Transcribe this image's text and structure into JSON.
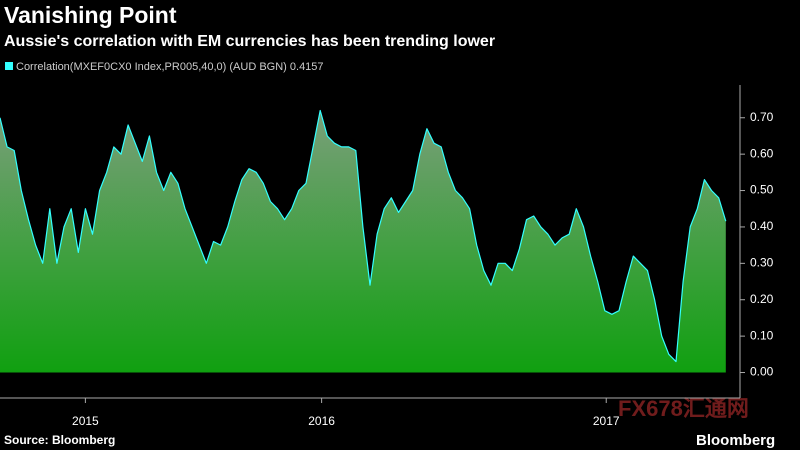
{
  "chart_data": {
    "type": "area",
    "title": "Vanishing Point",
    "subtitle": "Aussie's correlation with EM currencies has been trending lower",
    "source": "Source: Bloomberg",
    "brand": "Bloomberg",
    "watermark": "FX678汇通网",
    "x": [
      2014.7,
      2014.725,
      2014.75,
      2014.775,
      2014.8,
      2014.825,
      2014.85,
      2014.875,
      2014.9,
      2014.925,
      2014.95,
      2014.975,
      2015,
      2015.025,
      2015.05,
      2015.075,
      2015.1,
      2015.125,
      2015.15,
      2015.175,
      2015.2,
      2015.225,
      2015.25,
      2015.275,
      2015.3,
      2015.325,
      2015.35,
      2015.375,
      2015.4,
      2015.425,
      2015.45,
      2015.475,
      2015.5,
      2015.525,
      2015.55,
      2015.575,
      2015.6,
      2015.625,
      2015.65,
      2015.675,
      2015.7,
      2015.725,
      2015.75,
      2015.775,
      2015.8,
      2015.825,
      2015.85,
      2015.875,
      2015.9,
      2015.925,
      2015.95,
      2015.975,
      2016,
      2016.025,
      2016.05,
      2016.075,
      2016.1,
      2016.125,
      2016.15,
      2016.175,
      2016.2,
      2016.225,
      2016.25,
      2016.275,
      2016.3,
      2016.325,
      2016.35,
      2016.375,
      2016.4,
      2016.425,
      2016.45,
      2016.475,
      2016.5,
      2016.525,
      2016.55,
      2016.575,
      2016.6,
      2016.625,
      2016.65,
      2016.675,
      2016.7,
      2016.725,
      2016.75,
      2016.775,
      2016.8,
      2016.825,
      2016.85,
      2016.875,
      2016.9,
      2016.925,
      2016.95,
      2016.975,
      2017,
      2017.025,
      2017.05,
      2017.075,
      2017.1,
      2017.125,
      2017.15,
      2017.175,
      2017.2,
      2017.225,
      2017.25
    ],
    "series": [
      {
        "name": "Correlation(MXEF0CX0 Index,PR005,40,0) (AUD BGN)",
        "color": "#33ffff",
        "values": [
          0.7,
          0.62,
          0.61,
          0.5,
          0.42,
          0.35,
          0.3,
          0.45,
          0.3,
          0.4,
          0.45,
          0.33,
          0.45,
          0.38,
          0.5,
          0.55,
          0.62,
          0.6,
          0.68,
          0.63,
          0.58,
          0.65,
          0.55,
          0.5,
          0.55,
          0.52,
          0.45,
          0.4,
          0.35,
          0.3,
          0.36,
          0.35,
          0.4,
          0.47,
          0.53,
          0.56,
          0.55,
          0.52,
          0.47,
          0.45,
          0.42,
          0.45,
          0.5,
          0.52,
          0.62,
          0.72,
          0.65,
          0.63,
          0.62,
          0.62,
          0.61,
          0.4,
          0.24,
          0.38,
          0.45,
          0.48,
          0.44,
          0.47,
          0.5,
          0.6,
          0.67,
          0.63,
          0.62,
          0.55,
          0.5,
          0.48,
          0.45,
          0.35,
          0.28,
          0.24,
          0.3,
          0.3,
          0.28,
          0.34,
          0.42,
          0.43,
          0.4,
          0.38,
          0.35,
          0.37,
          0.38,
          0.45,
          0.4,
          0.32,
          0.25,
          0.17,
          0.16,
          0.17,
          0.25,
          0.32,
          0.3,
          0.28,
          0.2,
          0.1,
          0.05,
          0.03,
          0.25,
          0.4,
          0.45,
          0.53,
          0.5,
          0.48,
          0.4157
        ]
      }
    ],
    "xlim": [
      2014.7,
      2017.3
    ],
    "xticks": [
      {
        "value": 2015.0,
        "label": "2015"
      },
      {
        "value": 2015.83,
        "label": "2016"
      },
      {
        "value": 2016.83,
        "label": "2017"
      }
    ],
    "ylim": [
      -0.07,
      0.79
    ],
    "yticks": [
      {
        "value": 0,
        "label": "0.00"
      },
      {
        "value": 0.1,
        "label": "0.10"
      },
      {
        "value": 0.2,
        "label": "0.20"
      },
      {
        "value": 0.3,
        "label": "0.30"
      },
      {
        "value": 0.4,
        "label": "0.40"
      },
      {
        "value": 0.5,
        "label": "0.50"
      },
      {
        "value": 0.6,
        "label": "0.60"
      },
      {
        "value": 0.7,
        "label": "0.70"
      }
    ],
    "y_axis_side": "right"
  }
}
